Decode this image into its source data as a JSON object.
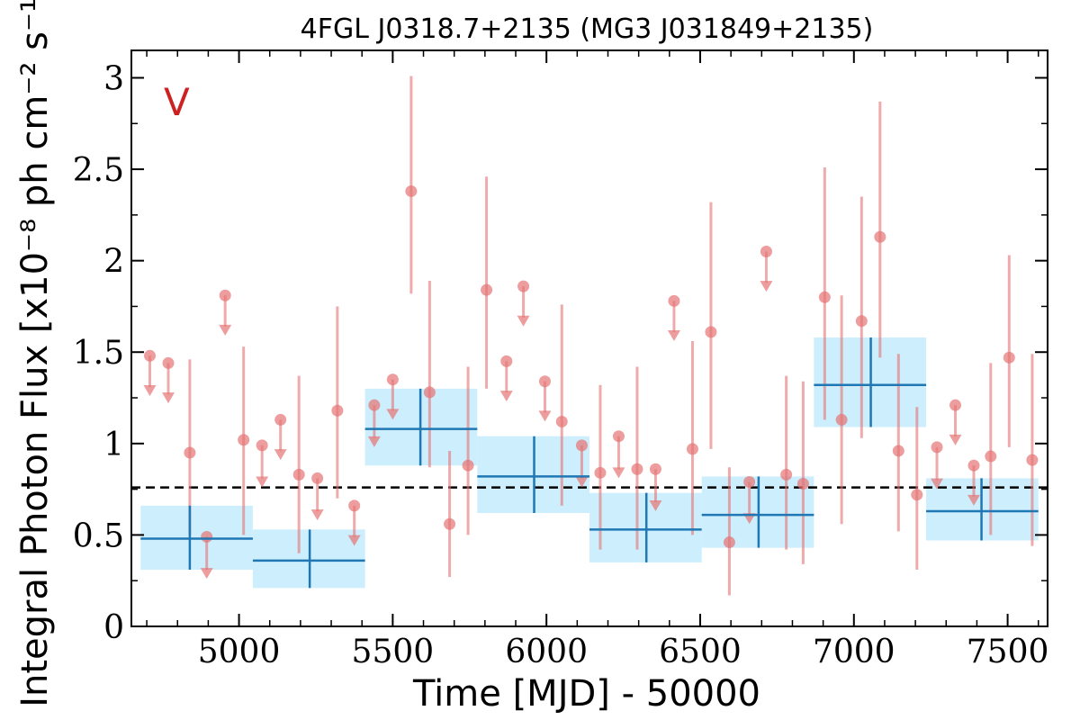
{
  "chart_data": {
    "type": "scatter",
    "title": "4FGL J0318.7+2135 (MG3 J031849+2135)",
    "xlabel": "Time [MJD] - 50000",
    "ylabel": "Integral Photon Flux [x10⁻⁸ ph cm⁻² s⁻¹]",
    "panel_label": "V",
    "xlim": [
      4650,
      7630
    ],
    "ylim": [
      0,
      3.15
    ],
    "x_ticks": [
      5000,
      5500,
      6000,
      6500,
      7000,
      7500
    ],
    "x_tick_labels": [
      "5000",
      "5500",
      "6000",
      "6500",
      "7000",
      "7500"
    ],
    "y_ticks": [
      0,
      0.5,
      1,
      1.5,
      2,
      2.5,
      3
    ],
    "y_tick_labels": [
      "0",
      "0.5",
      "1",
      "1.5",
      "2",
      "2.5",
      "3"
    ],
    "mean_flux": 0.76,
    "colors": {
      "points": "#e57373",
      "bins": "#1f77b4",
      "bin_fill": "#cdeefc",
      "mean_line": "#000000",
      "panel_label": "#cc2222"
    },
    "short_bins": {
      "detections": [
        {
          "x": 4840,
          "y": 0.95,
          "lo": 0.5,
          "hi": 1.46
        },
        {
          "x": 5015,
          "y": 1.02,
          "lo": 0.5,
          "hi": 1.53
        },
        {
          "x": 5195,
          "y": 0.83,
          "lo": 0.4,
          "hi": 1.37
        },
        {
          "x": 5320,
          "y": 1.18,
          "lo": 0.7,
          "hi": 1.75
        },
        {
          "x": 5560,
          "y": 2.38,
          "lo": 1.82,
          "hi": 3.01
        },
        {
          "x": 5620,
          "y": 1.28,
          "lo": 0.87,
          "hi": 1.89
        },
        {
          "x": 5685,
          "y": 0.56,
          "lo": 0.27,
          "hi": 0.96
        },
        {
          "x": 5745,
          "y": 0.88,
          "lo": 0.5,
          "hi": 1.42
        },
        {
          "x": 5805,
          "y": 1.84,
          "lo": 1.3,
          "hi": 2.46
        },
        {
          "x": 6050,
          "y": 1.12,
          "lo": 0.66,
          "hi": 1.76
        },
        {
          "x": 6175,
          "y": 0.84,
          "lo": 0.42,
          "hi": 1.32
        },
        {
          "x": 6295,
          "y": 0.86,
          "lo": 0.42,
          "hi": 1.42
        },
        {
          "x": 6475,
          "y": 0.97,
          "lo": 0.5,
          "hi": 1.56
        },
        {
          "x": 6535,
          "y": 1.61,
          "lo": 0.97,
          "hi": 2.32
        },
        {
          "x": 6595,
          "y": 0.46,
          "lo": 0.17,
          "hi": 0.87
        },
        {
          "x": 6780,
          "y": 0.83,
          "lo": 0.42,
          "hi": 1.37
        },
        {
          "x": 6835,
          "y": 0.78,
          "lo": 0.34,
          "hi": 1.34
        },
        {
          "x": 6905,
          "y": 1.8,
          "lo": 1.13,
          "hi": 2.51
        },
        {
          "x": 6960,
          "y": 1.13,
          "lo": 0.56,
          "hi": 1.81
        },
        {
          "x": 7025,
          "y": 1.67,
          "lo": 1.03,
          "hi": 2.35
        },
        {
          "x": 7085,
          "y": 2.13,
          "lo": 1.47,
          "hi": 2.87
        },
        {
          "x": 7145,
          "y": 0.96,
          "lo": 0.52,
          "hi": 1.49
        },
        {
          "x": 7205,
          "y": 0.72,
          "lo": 0.31,
          "hi": 1.2
        },
        {
          "x": 7445,
          "y": 0.93,
          "lo": 0.5,
          "hi": 1.44
        },
        {
          "x": 7505,
          "y": 1.47,
          "lo": 0.98,
          "hi": 2.03
        },
        {
          "x": 7580,
          "y": 0.91,
          "lo": 0.44,
          "hi": 1.49
        }
      ],
      "upper_limits": [
        {
          "x": 4710,
          "y": 1.48,
          "tip": 1.27
        },
        {
          "x": 4770,
          "y": 1.44,
          "tip": 1.23
        },
        {
          "x": 4895,
          "y": 0.49,
          "tip": 0.27
        },
        {
          "x": 4955,
          "y": 1.81,
          "tip": 1.6
        },
        {
          "x": 5075,
          "y": 0.99,
          "tip": 0.77
        },
        {
          "x": 5135,
          "y": 1.13,
          "tip": 0.92
        },
        {
          "x": 5255,
          "y": 0.81,
          "tip": 0.59
        },
        {
          "x": 5375,
          "y": 0.66,
          "tip": 0.45
        },
        {
          "x": 5440,
          "y": 1.21,
          "tip": 0.99
        },
        {
          "x": 5500,
          "y": 1.35,
          "tip": 1.14
        },
        {
          "x": 5870,
          "y": 1.45,
          "tip": 1.24
        },
        {
          "x": 5925,
          "y": 1.86,
          "tip": 1.65
        },
        {
          "x": 5995,
          "y": 1.34,
          "tip": 1.13
        },
        {
          "x": 6115,
          "y": 0.99,
          "tip": 0.77
        },
        {
          "x": 6235,
          "y": 1.04,
          "tip": 0.82
        },
        {
          "x": 6355,
          "y": 0.86,
          "tip": 0.64
        },
        {
          "x": 6415,
          "y": 1.78,
          "tip": 1.57
        },
        {
          "x": 6660,
          "y": 0.79,
          "tip": 0.57
        },
        {
          "x": 6715,
          "y": 2.05,
          "tip": 1.84
        },
        {
          "x": 7270,
          "y": 0.98,
          "tip": 0.76
        },
        {
          "x": 7330,
          "y": 1.21,
          "tip": 1.0
        },
        {
          "x": 7390,
          "y": 0.88,
          "tip": 0.67
        }
      ]
    },
    "long_bins": [
      {
        "x_start": 4680,
        "x_end": 5045,
        "x": 4840,
        "y": 0.48,
        "lo": 0.31,
        "hi": 0.66
      },
      {
        "x_start": 5045,
        "x_end": 5410,
        "x": 5230,
        "y": 0.36,
        "lo": 0.21,
        "hi": 0.53
      },
      {
        "x_start": 5410,
        "x_end": 5775,
        "x": 5590,
        "y": 1.08,
        "lo": 0.88,
        "hi": 1.3
      },
      {
        "x_start": 5775,
        "x_end": 6140,
        "x": 5960,
        "y": 0.82,
        "lo": 0.62,
        "hi": 1.04
      },
      {
        "x_start": 6140,
        "x_end": 6505,
        "x": 6325,
        "y": 0.53,
        "lo": 0.35,
        "hi": 0.73
      },
      {
        "x_start": 6505,
        "x_end": 6870,
        "x": 6690,
        "y": 0.61,
        "lo": 0.43,
        "hi": 0.82
      },
      {
        "x_start": 6870,
        "x_end": 7235,
        "x": 7055,
        "y": 1.32,
        "lo": 1.09,
        "hi": 1.58
      },
      {
        "x_start": 7235,
        "x_end": 7600,
        "x": 7415,
        "y": 0.63,
        "lo": 0.47,
        "hi": 0.81
      }
    ]
  }
}
